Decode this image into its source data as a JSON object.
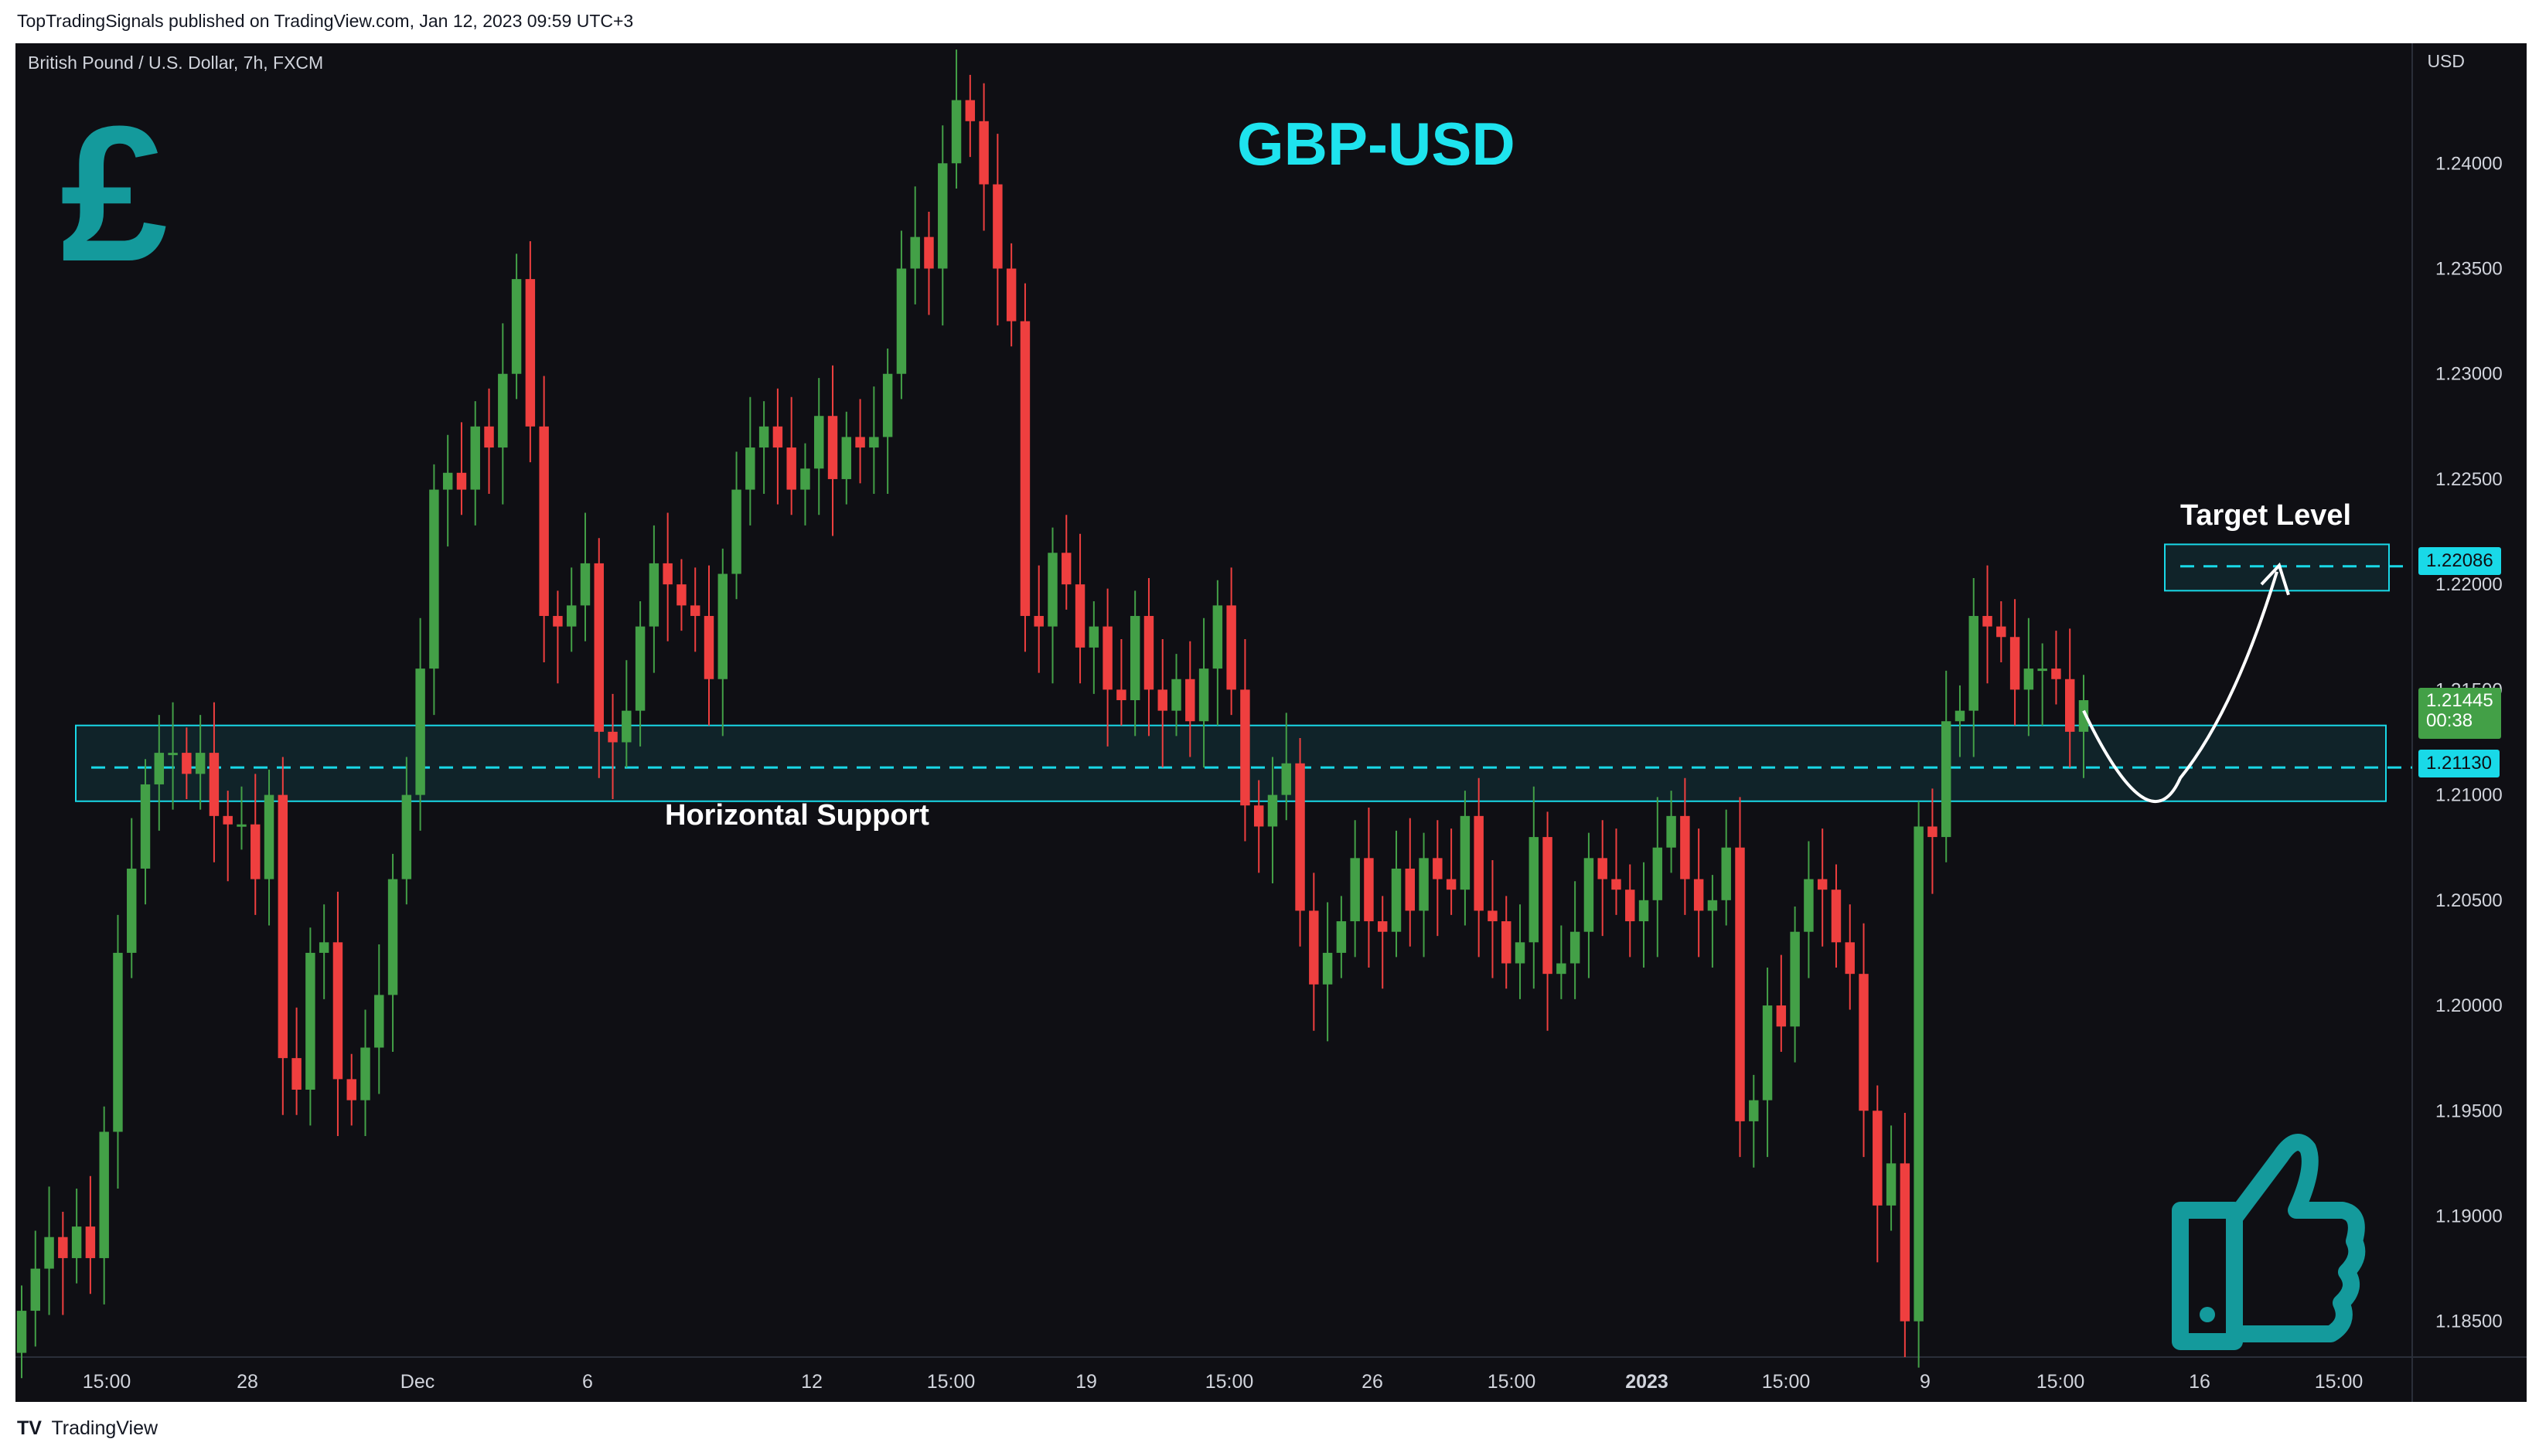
{
  "header": {
    "published_text": "TopTradingSignals published on TradingView.com, Jan 12, 2023 09:59 UTC+3"
  },
  "footer": {
    "logo_text": "TradingView"
  },
  "chart": {
    "symbol": "British Pound / U.S. Dollar, 7h, FXCM",
    "currency": "USD",
    "title": "GBP-USD",
    "support_label": "Horizontal Support",
    "target_label": "Target Level",
    "current_price_label": "1.21445",
    "countdown_label": "00:38",
    "target_price_label": "1.22086",
    "support_price_label": "1.21130",
    "colors": {
      "background": "#0f0f14",
      "up": "#43a047",
      "down": "#ef3f3f",
      "accent": "#19d9e8",
      "icon": "#149a9c"
    },
    "icons": [
      "pound-sign-icon",
      "thumbs-up-icon"
    ]
  },
  "chart_data": {
    "type": "candlestick",
    "title": "GBP-USD",
    "ylabel": "USD",
    "ylim": [
      1.1833,
      1.2457
    ],
    "y_ticks": [
      "1.24000",
      "1.23500",
      "1.23000",
      "1.22500",
      "1.22000",
      "1.21500",
      "1.21000",
      "1.20500",
      "1.20000",
      "1.19500",
      "1.19000",
      "1.18500"
    ],
    "x_ticks": [
      "15:00",
      "28",
      "Dec",
      "6",
      "12",
      "15:00",
      "19",
      "15:00",
      "26",
      "15:00",
      "2023",
      "15:00",
      "9",
      "15:00",
      "16",
      "15:00"
    ],
    "support_zone": [
      1.2097,
      1.2133
    ],
    "support_level": 1.2113,
    "target_zone": [
      1.2197,
      1.2219
    ],
    "target_level": 1.22086,
    "current_price": 1.21445,
    "close_series": [
      1.1855,
      1.1875,
      1.189,
      1.188,
      1.1895,
      1.188,
      1.194,
      1.2025,
      1.2065,
      1.2105,
      1.212,
      1.212,
      1.211,
      1.212,
      1.209,
      1.2086,
      1.2086,
      1.206,
      1.21,
      1.1975,
      1.196,
      1.2025,
      1.203,
      1.1965,
      1.1955,
      1.198,
      1.2005,
      1.206,
      1.21,
      1.216,
      1.2245,
      1.2253,
      1.2245,
      1.2275,
      1.2265,
      1.23,
      1.2345,
      1.2275,
      1.2185,
      1.218,
      1.219,
      1.221,
      1.213,
      1.2125,
      1.214,
      1.218,
      1.221,
      1.22,
      1.219,
      1.2185,
      1.2155,
      1.2205,
      1.2245,
      1.2265,
      1.2275,
      1.2265,
      1.2245,
      1.2255,
      1.228,
      1.225,
      1.227,
      1.2265,
      1.227,
      1.23,
      1.235,
      1.2365,
      1.235,
      1.24,
      1.243,
      1.242,
      1.239,
      1.235,
      1.2325,
      1.2185,
      1.218,
      1.2215,
      1.22,
      1.217,
      1.218,
      1.215,
      1.2145,
      1.2185,
      1.215,
      1.214,
      1.2155,
      1.2135,
      1.216,
      1.219,
      1.215,
      1.2095,
      1.2085,
      1.21,
      1.2115,
      1.2045,
      1.201,
      1.2025,
      1.204,
      1.207,
      1.204,
      1.2035,
      1.2065,
      1.2045,
      1.207,
      1.206,
      1.2055,
      1.209,
      1.2045,
      1.204,
      1.202,
      1.203,
      1.208,
      1.2015,
      1.202,
      1.2035,
      1.207,
      1.206,
      1.2055,
      1.204,
      1.205,
      1.2075,
      1.209,
      1.206,
      1.2045,
      1.205,
      1.2075,
      1.1945,
      1.1955,
      1.2,
      1.199,
      1.2035,
      1.206,
      1.2055,
      1.203,
      1.2015,
      1.195,
      1.1905,
      1.1925,
      1.185,
      1.2085,
      1.208,
      1.2135,
      1.214,
      1.2185,
      1.218,
      1.2175,
      1.215,
      1.216,
      1.216,
      1.2155,
      1.213,
      1.2145
    ]
  }
}
